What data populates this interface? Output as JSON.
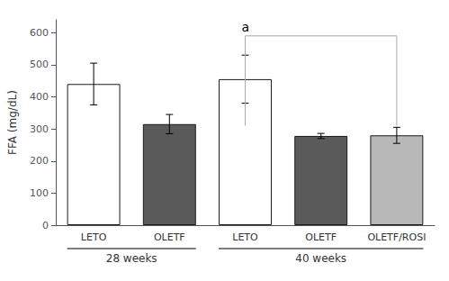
{
  "chart_data": {
    "type": "bar",
    "ylabel": "FFA (mg/dL)",
    "categories": [
      "LETO",
      "OLETF",
      "LETO",
      "OLETF",
      "OLETF/ROSI"
    ],
    "groups": [
      "28 weeks",
      "28 weeks",
      "40 weeks",
      "40 weeks",
      "40 weeks"
    ],
    "values": [
      440,
      315,
      455,
      278,
      280
    ],
    "errors": [
      65,
      30,
      75,
      8,
      25
    ],
    "colors": [
      "#ffffff",
      "#5a5a5a",
      "#ffffff",
      "#5a5a5a",
      "#b8b8b8"
    ],
    "ylim": [
      0,
      640
    ],
    "yticks": [
      0,
      100,
      200,
      300,
      400,
      500,
      600
    ],
    "grid": false,
    "annotations": [
      {
        "type": "bracket",
        "text": "a",
        "from": 2,
        "to": 4,
        "y_bottom": 310,
        "y_top": 590,
        "color": "#aaaaaa"
      }
    ]
  }
}
